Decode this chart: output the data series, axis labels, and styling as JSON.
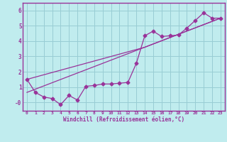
{
  "xlabel": "Windchill (Refroidissement éolien,°C)",
  "bg_color": "#c0ecee",
  "grid_color": "#98cdd4",
  "line_color": "#993399",
  "spine_color": "#993399",
  "xlim": [
    -0.5,
    23.5
  ],
  "ylim": [
    -0.55,
    6.5
  ],
  "xticks": [
    0,
    1,
    2,
    3,
    4,
    5,
    6,
    7,
    8,
    9,
    10,
    11,
    12,
    13,
    14,
    15,
    16,
    17,
    18,
    19,
    20,
    21,
    22,
    23
  ],
  "yticks": [
    0,
    1,
    2,
    3,
    4,
    5,
    6
  ],
  "ytick_labels": [
    "-0",
    "1",
    "2",
    "3",
    "4",
    "5",
    "6"
  ],
  "line1_x": [
    0,
    1,
    2,
    3,
    4,
    5,
    6,
    7,
    8,
    9,
    10,
    11,
    12,
    13,
    14,
    15,
    16,
    17,
    18,
    19,
    20,
    21,
    22,
    23
  ],
  "line1_y": [
    1.5,
    0.65,
    0.35,
    0.25,
    -0.15,
    0.45,
    0.15,
    1.05,
    1.1,
    1.2,
    1.2,
    1.25,
    1.3,
    2.55,
    4.35,
    4.65,
    4.3,
    4.35,
    4.4,
    4.85,
    5.35,
    5.85,
    5.5,
    5.5
  ],
  "line2_x": [
    0,
    23
  ],
  "line2_y": [
    0.65,
    5.5
  ],
  "line3_x": [
    0,
    14,
    23
  ],
  "line3_y": [
    1.5,
    3.6,
    5.5
  ]
}
